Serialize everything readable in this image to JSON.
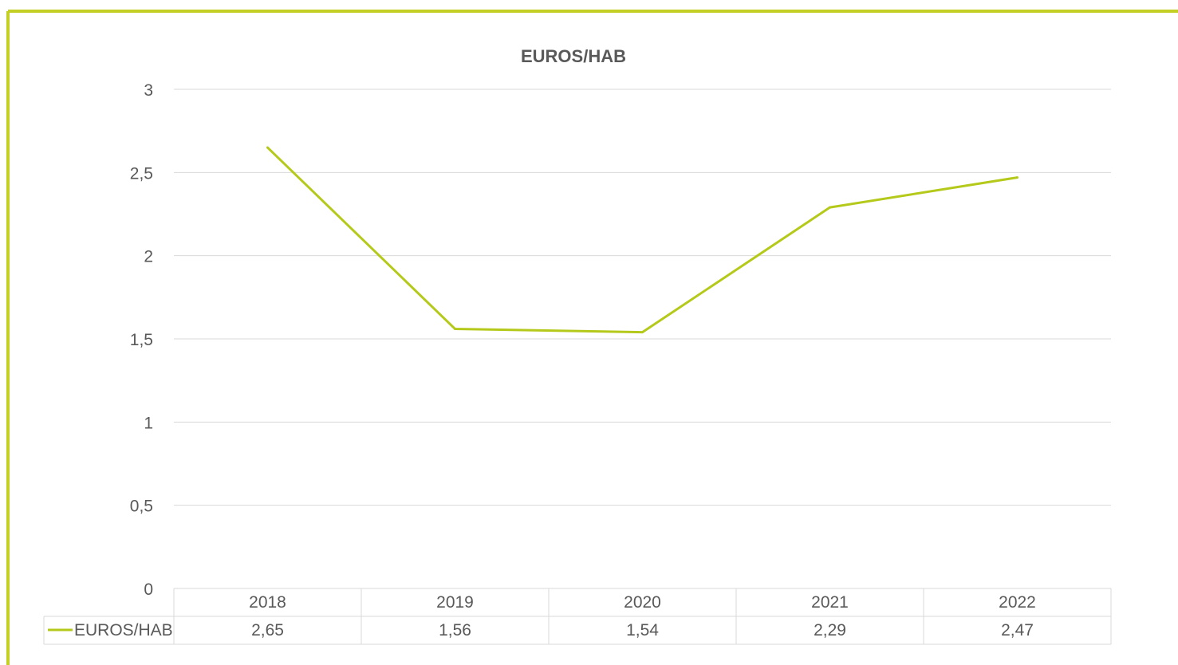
{
  "colors": {
    "accent": "#b5c91b",
    "frame": "#c3cf24",
    "grid": "#d9d9d9",
    "text": "#595959"
  },
  "chart_data": {
    "type": "line",
    "title": "EUROS/HAB",
    "xlabel": "",
    "ylabel": "",
    "categories": [
      "2018",
      "2019",
      "2020",
      "2021",
      "2022"
    ],
    "series": [
      {
        "name": "EUROS/HAB",
        "values": [
          2.65,
          1.56,
          1.54,
          2.29,
          2.47
        ],
        "value_labels": [
          "2,65",
          "1,56",
          "1,54",
          "2,29",
          "2,47"
        ],
        "color": "#b5c91b"
      }
    ],
    "ylim": [
      0,
      3
    ],
    "yticks": [
      0,
      0.5,
      1,
      1.5,
      2,
      2.5,
      3
    ],
    "ytick_labels": [
      "0",
      "0,5",
      "1",
      "1,5",
      "2",
      "2,5",
      "3"
    ],
    "grid": true,
    "legend": "data-table"
  }
}
